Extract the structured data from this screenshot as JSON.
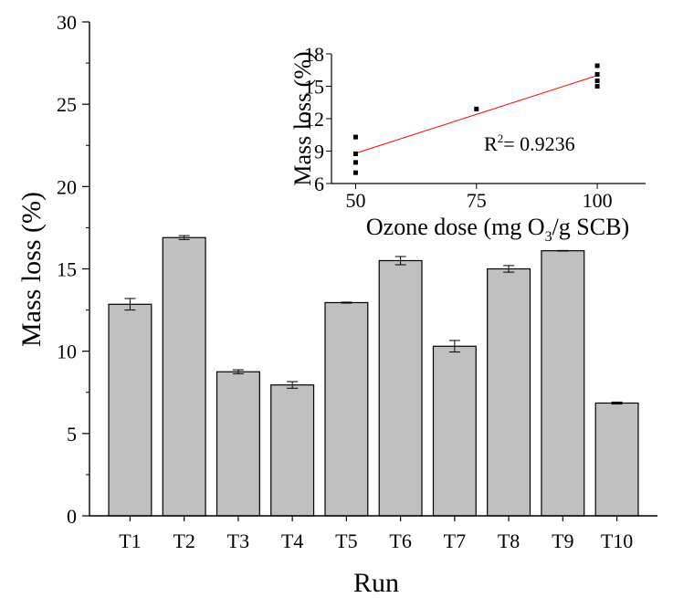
{
  "chart_data": [
    {
      "type": "bar",
      "categories": [
        "T1",
        "T2",
        "T3",
        "T4",
        "T5",
        "T6",
        "T7",
        "T8",
        "T9",
        "T10"
      ],
      "values": [
        12.85,
        16.9,
        8.75,
        7.95,
        12.95,
        15.5,
        10.3,
        15.0,
        16.1,
        6.85
      ],
      "errors": [
        0.35,
        0.12,
        0.12,
        0.2,
        0.03,
        0.25,
        0.35,
        0.2,
        0.02,
        0.06
      ],
      "xlabel": "Run",
      "ylabel": "Mass loss (%)",
      "ylim": [
        0,
        30
      ],
      "yticks": [
        0,
        5,
        10,
        15,
        20,
        25,
        30
      ],
      "bar_color": "#c0c0c0",
      "grid": false
    },
    {
      "type": "scatter",
      "points": [
        {
          "x": 50,
          "y": 7.0
        },
        {
          "x": 50,
          "y": 7.95
        },
        {
          "x": 50,
          "y": 8.75
        },
        {
          "x": 50,
          "y": 10.3
        },
        {
          "x": 75,
          "y": 12.9
        },
        {
          "x": 100,
          "y": 15.0
        },
        {
          "x": 100,
          "y": 15.5
        },
        {
          "x": 100,
          "y": 16.1
        },
        {
          "x": 100,
          "y": 16.9
        }
      ],
      "fit_line": {
        "x": [
          50,
          100
        ],
        "y": [
          8.8,
          16.0
        ],
        "color": "#ff0000"
      },
      "annotation": {
        "r_label": "R",
        "r_exponent": "2",
        "r_value": "= 0.9236"
      },
      "xlabel_parts": {
        "prefix": "Ozone dose (mg O",
        "subscript": "3",
        "suffix": "/g SCB)"
      },
      "ylabel": "Mass loss (%)",
      "xlim": [
        45,
        110
      ],
      "ylim": [
        6,
        18
      ],
      "xticks": [
        50,
        75,
        100
      ],
      "yticks": [
        6,
        9,
        12,
        15,
        18
      ],
      "grid": false
    }
  ]
}
